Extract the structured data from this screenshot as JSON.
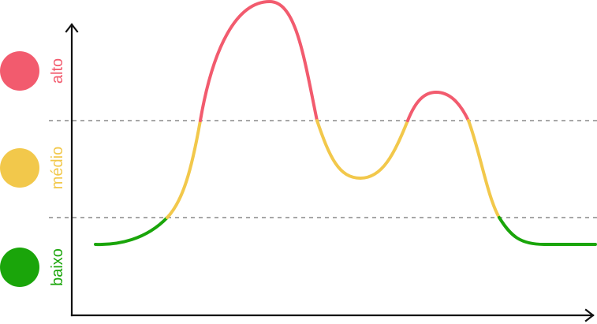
{
  "levels": {
    "high": {
      "label": "alto",
      "color": "#f25b6e"
    },
    "medium": {
      "label": "médio",
      "color": "#f2c84b"
    },
    "low": {
      "label": "baixo",
      "color": "#1aa50a"
    }
  }
}
